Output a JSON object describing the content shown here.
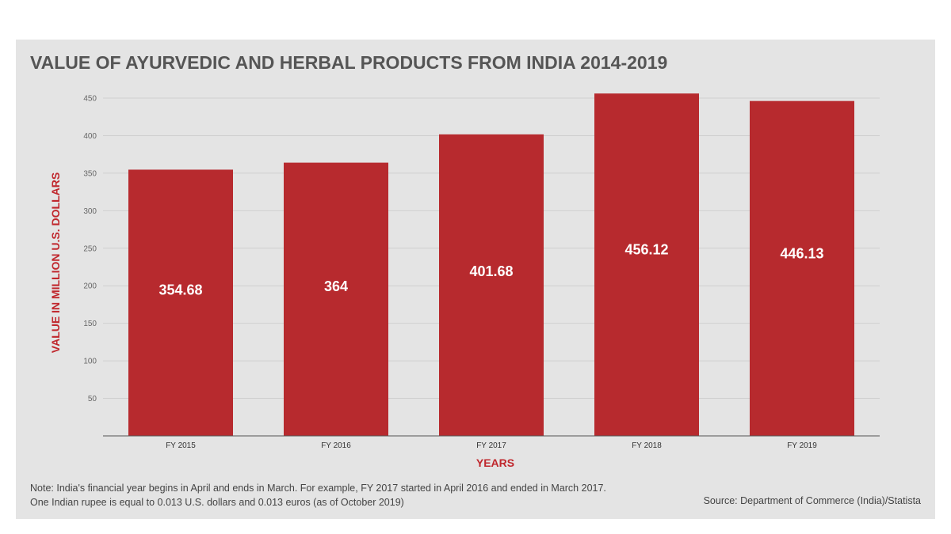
{
  "chart_data": {
    "type": "bar",
    "title": "VALUE OF AYURVEDIC AND HERBAL PRODUCTS FROM INDIA 2014-2019",
    "xlabel": "YEARS",
    "ylabel": "VALUE IN MILLION U.S. DOLLARS",
    "categories": [
      "FY 2015",
      "FY 2016",
      "FY 2017",
      "FY 2018",
      "FY 2019"
    ],
    "values": [
      354.68,
      364,
      401.68,
      456.12,
      446.13
    ],
    "value_labels": [
      "354.68",
      "364",
      "401.68",
      "456.12",
      "446.13"
    ],
    "yticks": [
      50,
      100,
      150,
      200,
      250,
      300,
      350,
      400,
      450
    ],
    "ylim": [
      0,
      450
    ],
    "grid": true,
    "legend": "none",
    "bar_color": "#b72a2e",
    "accent_color": "#c0272d"
  },
  "footer": {
    "note_line1": "Note: India's financial year begins in April and ends in March. For example, FY 2017 started in April 2016 and ended in March 2017.",
    "note_line2": "One Indian rupee is equal to 0.013 U.S. dollars and 0.013 euros (as of October 2019)",
    "source": "Source: Department of Commerce (India)/Statista"
  }
}
